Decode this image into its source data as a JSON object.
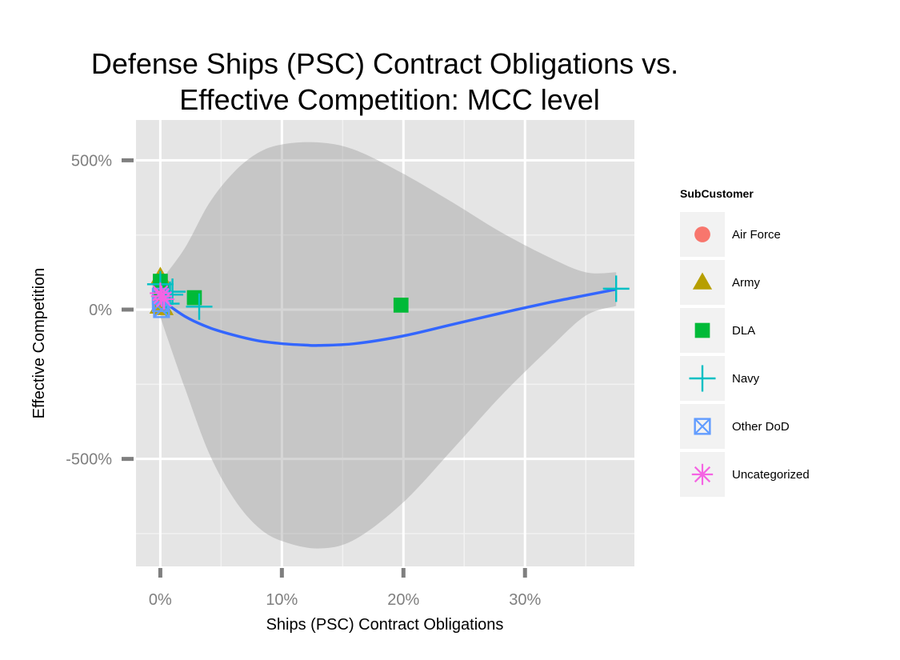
{
  "chart_data": {
    "type": "scatter",
    "title_line1": "Defense Ships (PSC) Contract Obligations vs.",
    "title_line2": "Effective Competition: MCC level",
    "xlabel": "Ships (PSC) Contract Obligations",
    "ylabel": "Effective Competition",
    "x_unit": "percent",
    "y_unit": "percent",
    "xlim": [
      -2,
      39
    ],
    "ylim": [
      -860,
      635
    ],
    "x_ticks": [
      0,
      10,
      20,
      30
    ],
    "x_tick_labels": [
      "0%",
      "10%",
      "20%",
      "30%"
    ],
    "y_ticks": [
      -500,
      0,
      500
    ],
    "y_tick_labels": [
      "-500%",
      "0%",
      "500%"
    ],
    "grid": true,
    "legend_position": "right",
    "legend": {
      "title": "SubCustomer",
      "entries": [
        {
          "label": "Air Force",
          "shape": "circle",
          "color": "#F8766D"
        },
        {
          "label": "Army",
          "shape": "triangle",
          "color": "#B79F00"
        },
        {
          "label": "DLA",
          "shape": "square",
          "color": "#00BA38"
        },
        {
          "label": "Navy",
          "shape": "plus",
          "color": "#00BFC4"
        },
        {
          "label": "Other DoD",
          "shape": "boxed-x",
          "color": "#619CFF"
        },
        {
          "label": "Uncategorized",
          "shape": "asterisk",
          "color": "#F564E3"
        }
      ]
    },
    "series": [
      {
        "name": "Air Force",
        "points": [
          {
            "x": 0.1,
            "y": 55
          },
          {
            "x": 0.2,
            "y": 40
          },
          {
            "x": 0.05,
            "y": 30
          }
        ]
      },
      {
        "name": "Army",
        "points": [
          {
            "x": 0.0,
            "y": 110
          },
          {
            "x": -0.1,
            "y": 10
          },
          {
            "x": 0.3,
            "y": 5
          },
          {
            "x": 0.1,
            "y": 70
          }
        ]
      },
      {
        "name": "DLA",
        "points": [
          {
            "x": 0.0,
            "y": 95
          },
          {
            "x": 0.1,
            "y": 60
          },
          {
            "x": 2.8,
            "y": 40
          },
          {
            "x": 19.8,
            "y": 15
          }
        ]
      },
      {
        "name": "Navy",
        "points": [
          {
            "x": 0.0,
            "y": 85
          },
          {
            "x": 0.8,
            "y": 50
          },
          {
            "x": 1.0,
            "y": 60
          },
          {
            "x": 0.5,
            "y": 20
          },
          {
            "x": 3.2,
            "y": 10
          },
          {
            "x": 37.5,
            "y": 70
          }
        ]
      },
      {
        "name": "Other DoD",
        "points": [
          {
            "x": 0.0,
            "y": 20
          },
          {
            "x": 0.1,
            "y": 0
          },
          {
            "x": 0.0,
            "y": 45
          }
        ]
      },
      {
        "name": "Uncategorized",
        "points": [
          {
            "x": 0.1,
            "y": 45
          },
          {
            "x": 0.3,
            "y": 35
          },
          {
            "x": 0.0,
            "y": 55
          }
        ]
      }
    ],
    "smooth": {
      "color": "#3366FF",
      "points": [
        {
          "x": 0,
          "y": 35
        },
        {
          "x": 2,
          "y": -22
        },
        {
          "x": 4,
          "y": -60
        },
        {
          "x": 6,
          "y": -85
        },
        {
          "x": 8,
          "y": -104
        },
        {
          "x": 10,
          "y": -114
        },
        {
          "x": 12,
          "y": -119
        },
        {
          "x": 13,
          "y": -120
        },
        {
          "x": 16,
          "y": -114
        },
        {
          "x": 20,
          "y": -88
        },
        {
          "x": 24,
          "y": -50
        },
        {
          "x": 28,
          "y": -12
        },
        {
          "x": 32,
          "y": 24
        },
        {
          "x": 35,
          "y": 48
        },
        {
          "x": 37.5,
          "y": 68
        }
      ],
      "ci_upper": [
        {
          "x": 0,
          "y": 95
        },
        {
          "x": 2,
          "y": 205
        },
        {
          "x": 4,
          "y": 355
        },
        {
          "x": 6,
          "y": 458
        },
        {
          "x": 8,
          "y": 524
        },
        {
          "x": 10,
          "y": 553
        },
        {
          "x": 13,
          "y": 560
        },
        {
          "x": 16,
          "y": 535
        },
        {
          "x": 20,
          "y": 455
        },
        {
          "x": 24,
          "y": 360
        },
        {
          "x": 28,
          "y": 260
        },
        {
          "x": 32,
          "y": 175
        },
        {
          "x": 35,
          "y": 125
        },
        {
          "x": 37.5,
          "y": 125
        }
      ],
      "ci_lower": [
        {
          "x": 0,
          "y": -25
        },
        {
          "x": 2,
          "y": -260
        },
        {
          "x": 4,
          "y": -480
        },
        {
          "x": 6,
          "y": -630
        },
        {
          "x": 8,
          "y": -727
        },
        {
          "x": 10,
          "y": -775
        },
        {
          "x": 13,
          "y": -800
        },
        {
          "x": 16,
          "y": -770
        },
        {
          "x": 20,
          "y": -645
        },
        {
          "x": 24,
          "y": -470
        },
        {
          "x": 28,
          "y": -290
        },
        {
          "x": 32,
          "y": -130
        },
        {
          "x": 35,
          "y": -20
        },
        {
          "x": 37.5,
          "y": 12
        }
      ]
    }
  }
}
